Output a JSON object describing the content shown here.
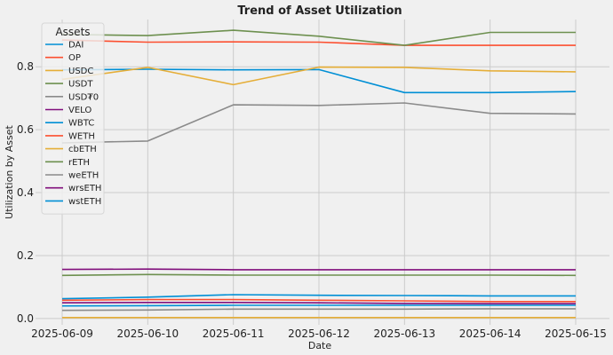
{
  "chart_data": {
    "type": "line",
    "title": "Trend of Asset Utilization",
    "xlabel": "Date",
    "ylabel": "Utilization by Asset",
    "x": [
      "2025-06-09",
      "2025-06-10",
      "2025-06-11",
      "2025-06-12",
      "2025-06-13",
      "2025-06-14",
      "2025-06-15"
    ],
    "ylim": [
      -0.02,
      0.95
    ],
    "yticks": [
      0.0,
      0.2,
      0.4,
      0.6,
      0.8
    ],
    "grid": true,
    "legend": {
      "title": "Assets",
      "placement": "top-left"
    },
    "series": [
      {
        "name": "DAI",
        "color": "#008fd5",
        "values": [
          0.79,
          0.792,
          0.79,
          0.791,
          0.718,
          0.718,
          0.721
        ]
      },
      {
        "name": "OP",
        "color": "#fc4f30",
        "values": [
          0.885,
          0.878,
          0.879,
          0.878,
          0.868,
          0.868,
          0.868
        ]
      },
      {
        "name": "USDC",
        "color": "#e5ae38",
        "values": [
          0.76,
          0.798,
          0.743,
          0.799,
          0.798,
          0.787,
          0.784
        ]
      },
      {
        "name": "USDT",
        "color": "#6d904f",
        "values": [
          0.903,
          0.899,
          0.916,
          0.897,
          0.868,
          0.909,
          0.909
        ]
      },
      {
        "name": "USD₮0",
        "color": "#8b8b8b",
        "values": [
          0.558,
          0.564,
          0.679,
          0.677,
          0.685,
          0.652,
          0.65
        ]
      },
      {
        "name": "VELO",
        "color": "#810f7c",
        "values": [
          0.156,
          0.157,
          0.155,
          0.155,
          0.155,
          0.155,
          0.155
        ]
      },
      {
        "name": "WBTC",
        "color": "#008fd5",
        "values": [
          0.063,
          0.068,
          0.076,
          0.074,
          0.073,
          0.072,
          0.072
        ]
      },
      {
        "name": "WETH",
        "color": "#fc4f30",
        "values": [
          0.058,
          0.06,
          0.06,
          0.058,
          0.056,
          0.054,
          0.054
        ]
      },
      {
        "name": "cbETH",
        "color": "#e5ae38",
        "values": [
          0.003,
          0.003,
          0.003,
          0.003,
          0.003,
          0.003,
          0.003
        ]
      },
      {
        "name": "rETH",
        "color": "#6d904f",
        "values": [
          0.137,
          0.14,
          0.138,
          0.138,
          0.138,
          0.138,
          0.137
        ]
      },
      {
        "name": "weETH",
        "color": "#8b8b8b",
        "values": [
          0.026,
          0.027,
          0.03,
          0.03,
          0.03,
          0.031,
          0.031
        ]
      },
      {
        "name": "wrsETH",
        "color": "#810f7c",
        "values": [
          0.05,
          0.051,
          0.051,
          0.05,
          0.048,
          0.047,
          0.047
        ]
      },
      {
        "name": "wstETH",
        "color": "#008fd5",
        "values": [
          0.04,
          0.041,
          0.042,
          0.042,
          0.042,
          0.042,
          0.042
        ]
      }
    ]
  }
}
